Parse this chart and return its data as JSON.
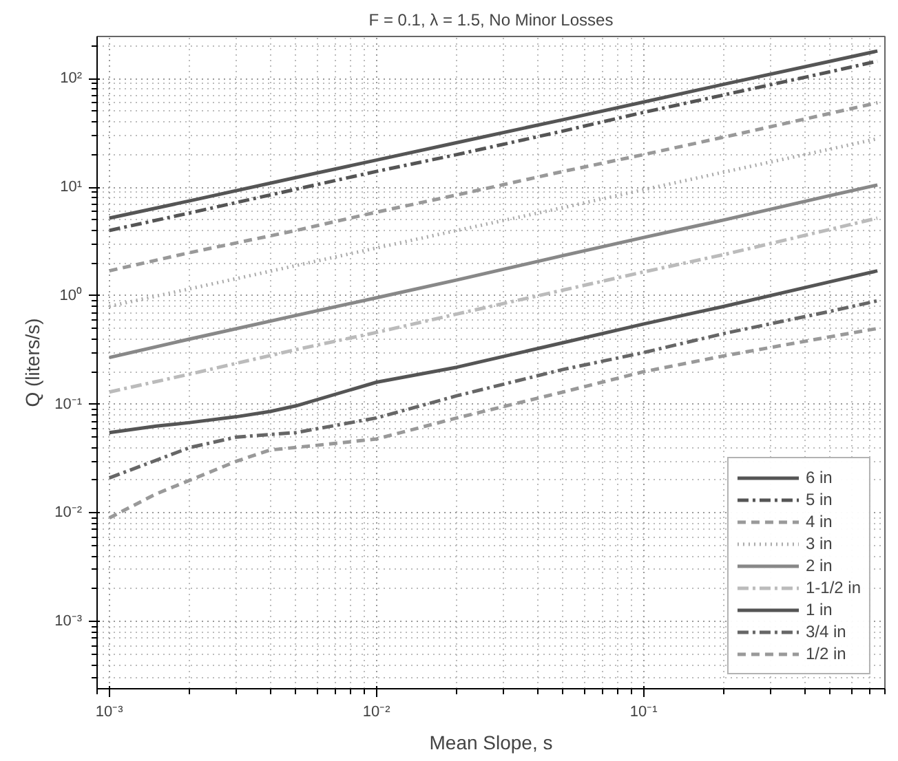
{
  "chart_data": {
    "type": "line",
    "title": "F = 0.1, λ = 1.5, No Minor Losses",
    "xlabel": "Mean Slope, s",
    "ylabel": "Q (liters/s)",
    "log": "xy",
    "grid": true,
    "legend": "bottom right",
    "xlim": [
      0.0009,
      0.8
    ],
    "ylim": [
      0.00024,
      245
    ],
    "xticks": [
      {
        "value": 0.001,
        "label": "10⁻³"
      },
      {
        "value": 0.01,
        "label": "10⁻²"
      },
      {
        "value": 0.1,
        "label": "10⁻¹"
      }
    ],
    "yticks": [
      {
        "value": 0.001,
        "label": "10⁻³"
      },
      {
        "value": 0.01,
        "label": "10⁻²"
      },
      {
        "value": 0.1,
        "label": "10⁻¹"
      },
      {
        "value": 1,
        "label": "10⁰"
      },
      {
        "value": 10,
        "label": "10¹"
      },
      {
        "value": 100,
        "label": "10²"
      }
    ],
    "series": [
      {
        "name": "6 in",
        "color": "#555555",
        "line_style": "solid",
        "x": [
          0.001,
          0.002,
          0.005,
          0.01,
          0.02,
          0.05,
          0.1,
          0.2,
          0.5,
          0.75
        ],
        "values": [
          5.2,
          7.5,
          12.3,
          17.8,
          25.8,
          42,
          61,
          89,
          145,
          180
        ]
      },
      {
        "name": "5 in",
        "color": "#555555",
        "line_style": "dashdot",
        "x": [
          0.001,
          0.002,
          0.005,
          0.01,
          0.02,
          0.05,
          0.1,
          0.2,
          0.5,
          0.75
        ],
        "values": [
          4.0,
          5.8,
          9.6,
          14,
          20,
          33,
          49,
          71,
          116,
          145
        ]
      },
      {
        "name": "4 in",
        "color": "#999999",
        "line_style": "dashed",
        "x": [
          0.001,
          0.002,
          0.005,
          0.01,
          0.02,
          0.05,
          0.1,
          0.2,
          0.5,
          0.75
        ],
        "values": [
          1.7,
          2.5,
          4.0,
          5.9,
          8.5,
          14,
          20,
          29,
          48,
          60
        ]
      },
      {
        "name": "3 in",
        "color": "#aaaaaa",
        "line_style": "dotted",
        "x": [
          0.001,
          0.002,
          0.005,
          0.01,
          0.02,
          0.05,
          0.1,
          0.2,
          0.5,
          0.75
        ],
        "values": [
          0.8,
          1.16,
          1.9,
          2.76,
          4.0,
          6.5,
          9.5,
          13.8,
          22.5,
          28
        ]
      },
      {
        "name": "2 in",
        "color": "#888888",
        "line_style": "solid",
        "x": [
          0.001,
          0.002,
          0.005,
          0.01,
          0.02,
          0.05,
          0.1,
          0.2,
          0.5,
          0.75
        ],
        "values": [
          0.27,
          0.4,
          0.66,
          0.96,
          1.4,
          2.35,
          3.45,
          5.0,
          8.4,
          10.5
        ]
      },
      {
        "name": "1-1/2 in",
        "color": "#bbbbbb",
        "line_style": "dashdot",
        "x": [
          0.001,
          0.002,
          0.005,
          0.01,
          0.02,
          0.05,
          0.1,
          0.2,
          0.5,
          0.75
        ],
        "values": [
          0.13,
          0.19,
          0.32,
          0.46,
          0.68,
          1.13,
          1.66,
          2.4,
          4.1,
          5.2
        ]
      },
      {
        "name": "1 in",
        "color": "#555555",
        "line_style": "solid",
        "x": [
          0.001,
          0.0015,
          0.002,
          0.003,
          0.004,
          0.005,
          0.01,
          0.02,
          0.05,
          0.1,
          0.2,
          0.5,
          0.75
        ],
        "values": [
          0.055,
          0.063,
          0.068,
          0.077,
          0.086,
          0.097,
          0.16,
          0.22,
          0.37,
          0.55,
          0.8,
          1.35,
          1.7
        ]
      },
      {
        "name": "3/4 in",
        "color": "#666666",
        "line_style": "dashdot",
        "x": [
          0.001,
          0.002,
          0.003,
          0.005,
          0.01,
          0.02,
          0.05,
          0.1,
          0.2,
          0.5,
          0.75
        ],
        "values": [
          0.021,
          0.04,
          0.05,
          0.055,
          0.075,
          0.12,
          0.21,
          0.3,
          0.45,
          0.72,
          0.9
        ]
      },
      {
        "name": "1/2 in",
        "color": "#999999",
        "line_style": "dashed",
        "x": [
          0.001,
          0.0015,
          0.002,
          0.003,
          0.004,
          0.006,
          0.01,
          0.02,
          0.05,
          0.1,
          0.2,
          0.5,
          0.75
        ],
        "values": [
          0.009,
          0.015,
          0.02,
          0.03,
          0.038,
          0.042,
          0.048,
          0.075,
          0.13,
          0.2,
          0.28,
          0.42,
          0.5
        ]
      }
    ]
  }
}
